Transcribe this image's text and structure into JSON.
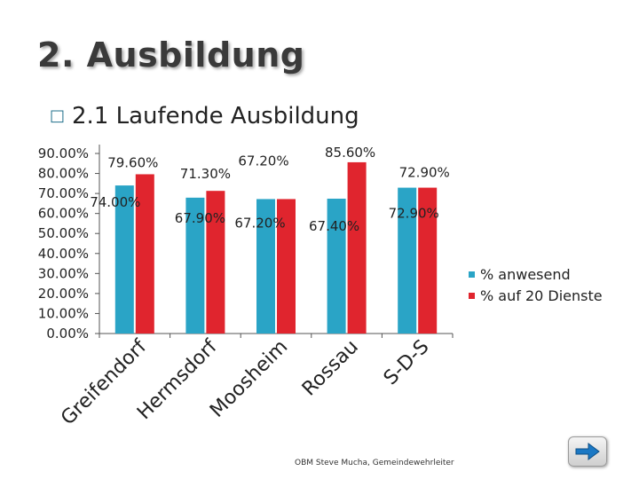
{
  "slide": {
    "title": "2. Ausbildung",
    "subtitle": "2.1 Laufende Ausbildung",
    "bullet_icon": "square-bullet-icon",
    "footer": "OBM Steve Mucha, Gemeindewehrleiter"
  },
  "nav": {
    "icon": "arrow-right-icon"
  },
  "colors": {
    "series1": "#2aa4c6",
    "series2": "#e0252e"
  },
  "chart_data": {
    "type": "bar",
    "categories": [
      "Greifendorf",
      "Hermsdorf",
      "Moosheim",
      "Rossau",
      "S-D-S"
    ],
    "series": [
      {
        "name": "% anwesend",
        "values": [
          74.0,
          67.9,
          67.2,
          67.4,
          72.9
        ],
        "labels": [
          "74.00%",
          "67.90%",
          "67.20%",
          "67.40%",
          "72.90%"
        ]
      },
      {
        "name": "% auf 20 Dienste",
        "values": [
          79.6,
          71.3,
          67.2,
          85.6,
          72.9
        ],
        "labels": [
          "79.60%",
          "71.30%",
          "67.20%",
          "85.60%",
          "72.90%"
        ]
      }
    ],
    "yticks": [
      "0.00%",
      "10.00%",
      "20.00%",
      "30.00%",
      "40.00%",
      "50.00%",
      "60.00%",
      "70.00%",
      "80.00%",
      "90.00%"
    ],
    "ylim": [
      0,
      90
    ],
    "legend": "right",
    "grid": false
  }
}
